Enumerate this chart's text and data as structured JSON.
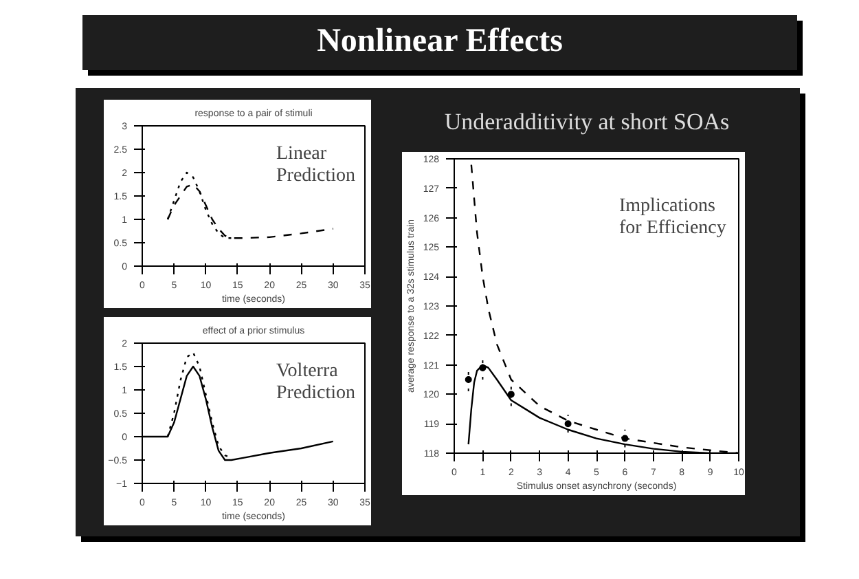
{
  "chart_data": [
    {
      "type": "line",
      "title": "response to a pair of stimuli",
      "xlabel": "time (seconds)",
      "annotations": [
        "Linear Prediction"
      ],
      "xlim": [
        0,
        35
      ],
      "xticks": [
        0,
        5,
        10,
        15,
        20,
        25,
        30,
        35
      ],
      "ylim": [
        0,
        3
      ],
      "yticks": [
        0,
        0.5,
        1,
        1.5,
        2,
        2.5,
        3
      ],
      "grid": false,
      "series": [
        {
          "color": "#000000",
          "line_style": "dashed",
          "x": [
            4,
            5,
            6,
            7,
            8,
            9,
            10,
            11,
            12,
            13,
            14,
            16,
            20,
            25,
            30
          ],
          "values": [
            1.0,
            1.3,
            1.5,
            1.7,
            1.75,
            1.6,
            1.3,
            1.0,
            0.8,
            0.65,
            0.6,
            0.6,
            0.62,
            0.7,
            0.8
          ]
        },
        {
          "color": "#000000",
          "line_style": "dotted",
          "x": [
            4,
            5,
            6,
            7,
            8,
            9,
            10,
            11,
            12,
            13,
            14
          ],
          "values": [
            1.0,
            1.4,
            1.8,
            2.0,
            1.9,
            1.6,
            1.2,
            0.9,
            0.7,
            0.6,
            0.6
          ]
        }
      ]
    },
    {
      "type": "line",
      "title": "effect of a prior stimulus",
      "xlabel": "time (seconds)",
      "annotations": [
        "Volterra Prediction"
      ],
      "xlim": [
        0,
        35
      ],
      "xticks": [
        0,
        5,
        10,
        15,
        20,
        25,
        30,
        35
      ],
      "ylim": [
        -1,
        2
      ],
      "yticks": [
        -1,
        -0.5,
        0,
        0.5,
        1,
        1.5,
        2
      ],
      "grid": false,
      "series": [
        {
          "color": "#000000",
          "line_style": "solid",
          "x": [
            0,
            3,
            4,
            5,
            6,
            7,
            8,
            9,
            10,
            11,
            12,
            13,
            14,
            16,
            20,
            25,
            30
          ],
          "values": [
            0,
            0,
            0,
            0.3,
            0.8,
            1.3,
            1.5,
            1.3,
            0.8,
            0.2,
            -0.3,
            -0.5,
            -0.5,
            -0.45,
            -0.35,
            -0.25,
            -0.1
          ]
        },
        {
          "color": "#000000",
          "line_style": "dotted",
          "x": [
            4,
            5,
            6,
            7,
            8,
            9,
            10,
            11,
            12,
            13,
            14
          ],
          "values": [
            0,
            0.5,
            1.2,
            1.7,
            1.8,
            1.5,
            0.9,
            0.3,
            -0.2,
            -0.4,
            -0.45
          ]
        }
      ]
    },
    {
      "type": "line",
      "title": "Nonlinear Effects",
      "subtitle": "Underadditivity at short SOAs",
      "xlabel": "Stimulus onset asynchrony (seconds)",
      "ylabel": "average response to a 32s stimulus train",
      "annotations": [
        "Implications for Efficiency"
      ],
      "xlim": [
        0,
        10
      ],
      "xticks": [
        0,
        1,
        2,
        3,
        4,
        5,
        6,
        7,
        8,
        9,
        10
      ],
      "ylim": [
        118,
        128
      ],
      "yticks": [
        118,
        119,
        120,
        121,
        122,
        123,
        124,
        125,
        126,
        127,
        128
      ],
      "grid": false,
      "series": [
        {
          "color": "#000000",
          "line_style": "solid",
          "x": [
            0.5,
            0.6,
            0.7,
            0.8,
            1,
            1.2,
            1.5,
            2,
            3,
            4,
            5,
            6,
            7,
            8,
            9,
            10
          ],
          "values": [
            118.3,
            119.5,
            120.4,
            120.8,
            121.0,
            120.9,
            120.5,
            119.8,
            119.2,
            118.8,
            118.5,
            118.3,
            118.15,
            118.05,
            118.0,
            118.0
          ]
        },
        {
          "color": "#000000",
          "line_style": "dashed",
          "x": [
            0.6,
            0.8,
            1,
            1.2,
            1.5,
            2,
            3,
            4,
            5,
            6,
            7,
            8,
            9,
            10
          ],
          "values": [
            127.8,
            125.5,
            124.0,
            122.9,
            121.7,
            120.5,
            119.6,
            119.1,
            118.8,
            118.5,
            118.35,
            118.2,
            118.1,
            118.0
          ]
        },
        {
          "type": "scatter",
          "marker": "circle",
          "color": "#000000",
          "x": [
            0.5,
            1,
            2,
            4,
            6
          ],
          "values": [
            120.5,
            120.9,
            120.0,
            119.0,
            118.5
          ],
          "errors": [
            0.4,
            0.4,
            0.4,
            0.3,
            0.3
          ]
        }
      ]
    }
  ]
}
